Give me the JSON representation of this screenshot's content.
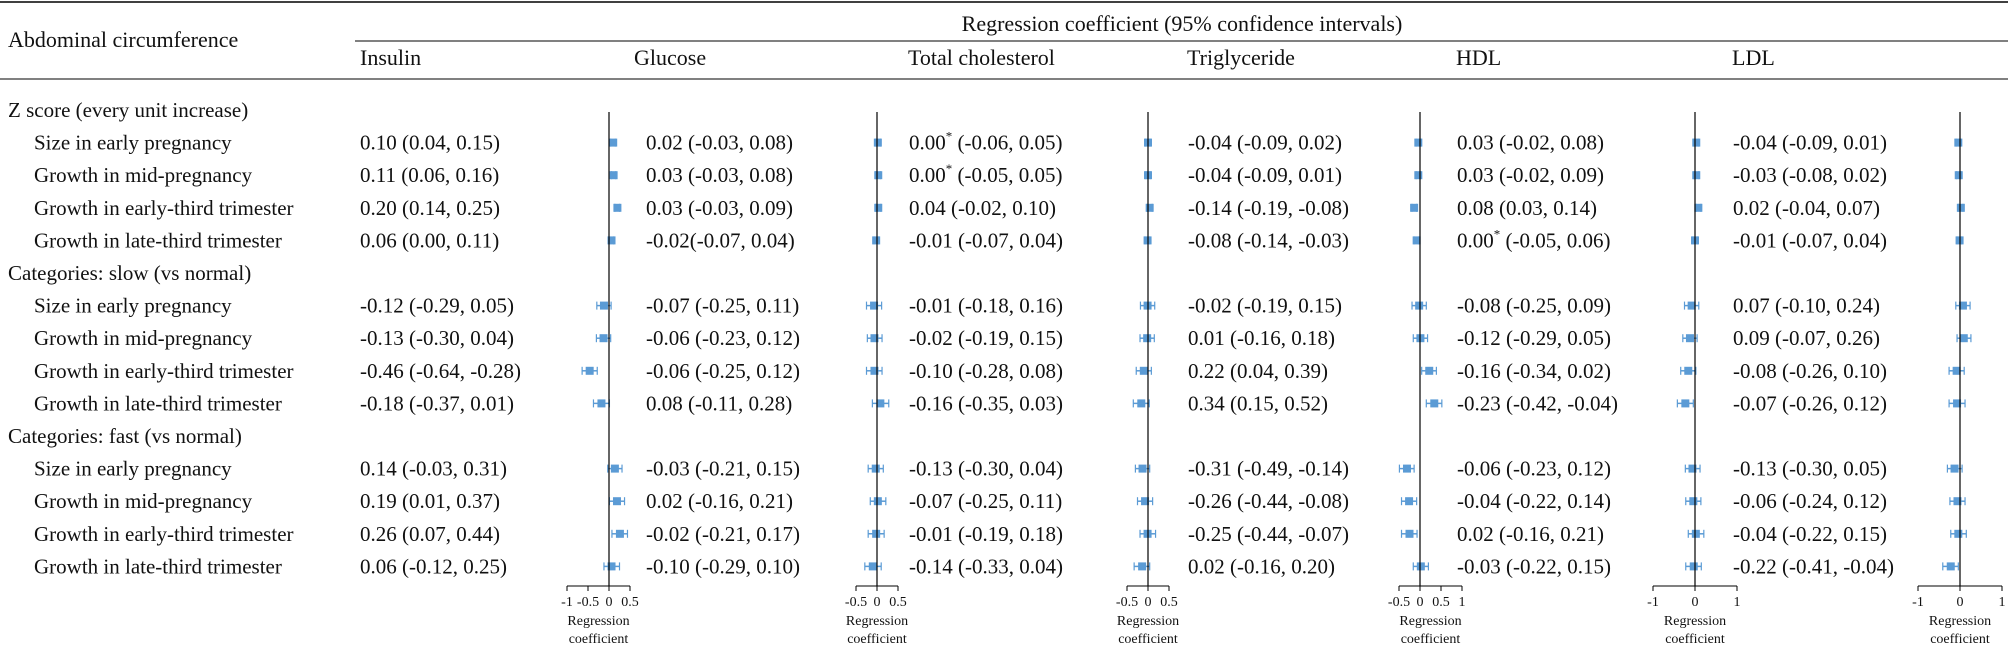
{
  "chart_data": {
    "type": "forest",
    "title": "Regression coefficient (95% confidence intervals)",
    "row_header": "Abdominal circumference",
    "columns": [
      {
        "name": "Insulin",
        "ticks": [
          "-1",
          "-0.5",
          "0",
          "0.5"
        ],
        "tick_values": [
          -1,
          -0.5,
          0,
          0.5
        ],
        "xlim": [
          -1,
          0.5
        ],
        "xlabel": "Regression coefficient"
      },
      {
        "name": "Glucose",
        "ticks": [
          "-0.5",
          "0",
          "0.5"
        ],
        "tick_values": [
          -0.5,
          0,
          0.5
        ],
        "xlim": [
          -0.5,
          0.5
        ],
        "xlabel": "Regression coefficient"
      },
      {
        "name": "Total cholesterol",
        "ticks": [
          "-0.5",
          "0",
          "0.5"
        ],
        "tick_values": [
          -0.5,
          0,
          0.5
        ],
        "xlim": [
          -0.5,
          0.5
        ],
        "xlabel": "Regression coefficient"
      },
      {
        "name": "Triglyceride",
        "ticks": [
          "-0.5",
          "0",
          "0.5",
          "1"
        ],
        "tick_values": [
          -0.5,
          0,
          0.5,
          1
        ],
        "xlim": [
          -0.5,
          1
        ],
        "xlabel": "Regression coefficient"
      },
      {
        "name": "HDL",
        "ticks": [
          "-1",
          "0",
          "1"
        ],
        "tick_values": [
          -1,
          0,
          1
        ],
        "xlim": [
          -1,
          1
        ],
        "xlabel": "Regression coefficient"
      },
      {
        "name": "LDL",
        "ticks": [
          "-1",
          "0",
          "1"
        ],
        "tick_values": [
          -1,
          0,
          1
        ],
        "xlim": [
          -1,
          1
        ],
        "xlabel": "Regression coefficient"
      }
    ],
    "groups": [
      {
        "title": "Z score (every unit increase)",
        "rows": [
          {
            "label": "Size in early pregnancy",
            "values": [
              {
                "text": "0.10 (0.04, 0.15)",
                "est": 0.1,
                "lo": 0.04,
                "hi": 0.15
              },
              {
                "text": "0.02 (-0.03, 0.08)",
                "est": 0.02,
                "lo": -0.03,
                "hi": 0.08
              },
              {
                "text": "0.00",
                "star": "*",
                "rest": " (-0.06, 0.05)",
                "est": 0.0,
                "lo": -0.06,
                "hi": 0.05
              },
              {
                "text": "-0.04 (-0.09, 0.02)",
                "est": -0.04,
                "lo": -0.09,
                "hi": 0.02
              },
              {
                "text": "0.03 (-0.02, 0.08)",
                "est": 0.03,
                "lo": -0.02,
                "hi": 0.08
              },
              {
                "text": "-0.04 (-0.09, 0.01)",
                "est": -0.04,
                "lo": -0.09,
                "hi": 0.01
              }
            ]
          },
          {
            "label": "Growth in mid-pregnancy",
            "values": [
              {
                "text": "0.11 (0.06, 0.16)",
                "est": 0.11,
                "lo": 0.06,
                "hi": 0.16
              },
              {
                "text": "0.03 (-0.03, 0.08)",
                "est": 0.03,
                "lo": -0.03,
                "hi": 0.08
              },
              {
                "text": "0.00",
                "star": "*",
                "rest": " (-0.05, 0.05)",
                "est": 0.0,
                "lo": -0.05,
                "hi": 0.05
              },
              {
                "text": "-0.04 (-0.09, 0.01)",
                "est": -0.04,
                "lo": -0.09,
                "hi": 0.01
              },
              {
                "text": "0.03 (-0.02, 0.09)",
                "est": 0.03,
                "lo": -0.02,
                "hi": 0.09
              },
              {
                "text": "-0.03 (-0.08, 0.02)",
                "est": -0.03,
                "lo": -0.08,
                "hi": 0.02
              }
            ]
          },
          {
            "label": "Growth in early-third trimester",
            "values": [
              {
                "text": "0.20 (0.14, 0.25)",
                "est": 0.2,
                "lo": 0.14,
                "hi": 0.25
              },
              {
                "text": "0.03 (-0.03, 0.09)",
                "est": 0.03,
                "lo": -0.03,
                "hi": 0.09
              },
              {
                "text": "0.04  (-0.02, 0.10)",
                "est": 0.04,
                "lo": -0.02,
                "hi": 0.1
              },
              {
                "text": "-0.14 (-0.19, -0.08)",
                "est": -0.14,
                "lo": -0.19,
                "hi": -0.08
              },
              {
                "text": "0.08  (0.03, 0.14)",
                "est": 0.08,
                "lo": 0.03,
                "hi": 0.14
              },
              {
                "text": "0.02  (-0.04, 0.07)",
                "est": 0.02,
                "lo": -0.04,
                "hi": 0.07
              }
            ]
          },
          {
            "label": "Growth in late-third trimester",
            "values": [
              {
                "text": "0.06 (0.00, 0.11)",
                "est": 0.06,
                "lo": 0.0,
                "hi": 0.11
              },
              {
                "text": "-0.02(-0.07, 0.04)",
                "est": -0.02,
                "lo": -0.07,
                "hi": 0.04
              },
              {
                "text": "-0.01 (-0.07, 0.04)",
                "est": -0.01,
                "lo": -0.07,
                "hi": 0.04
              },
              {
                "text": "-0.08 (-0.14, -0.03)",
                "est": -0.08,
                "lo": -0.14,
                "hi": -0.03
              },
              {
                "text": "0.00",
                "star": "*",
                "rest": " (-0.05, 0.06)",
                "est": 0.0,
                "lo": -0.05,
                "hi": 0.06
              },
              {
                "text": "-0.01 (-0.07, 0.04)",
                "est": -0.01,
                "lo": -0.07,
                "hi": 0.04
              }
            ]
          }
        ]
      },
      {
        "title": "Categories: slow (vs normal)",
        "rows": [
          {
            "label": "Size in early pregnancy",
            "values": [
              {
                "text": "-0.12 (-0.29, 0.05)",
                "est": -0.12,
                "lo": -0.29,
                "hi": 0.05
              },
              {
                "text": "-0.07 (-0.25, 0.11)",
                "est": -0.07,
                "lo": -0.25,
                "hi": 0.11
              },
              {
                "text": "-0.01 (-0.18, 0.16)",
                "est": -0.01,
                "lo": -0.18,
                "hi": 0.16
              },
              {
                "text": "-0.02 (-0.19, 0.15)",
                "est": -0.02,
                "lo": -0.19,
                "hi": 0.15
              },
              {
                "text": "-0.08 (-0.25, 0.09)",
                "est": -0.08,
                "lo": -0.25,
                "hi": 0.09
              },
              {
                "text": "0.07  (-0.10, 0.24)",
                "est": 0.07,
                "lo": -0.1,
                "hi": 0.24
              }
            ]
          },
          {
            "label": "Growth in mid-pregnancy",
            "values": [
              {
                "text": "-0.13 (-0.30, 0.04)",
                "est": -0.13,
                "lo": -0.3,
                "hi": 0.04
              },
              {
                "text": "-0.06 (-0.23, 0.12)",
                "est": -0.06,
                "lo": -0.23,
                "hi": 0.12
              },
              {
                "text": "-0.02 (-0.19, 0.15)",
                "est": -0.02,
                "lo": -0.19,
                "hi": 0.15
              },
              {
                "text": "0.01  (-0.16, 0.18)",
                "est": 0.01,
                "lo": -0.16,
                "hi": 0.18
              },
              {
                "text": "-0.12 (-0.29, 0.05)",
                "est": -0.12,
                "lo": -0.29,
                "hi": 0.05
              },
              {
                "text": "0.09  (-0.07, 0.26)",
                "est": 0.09,
                "lo": -0.07,
                "hi": 0.26
              }
            ]
          },
          {
            "label": "Growth in early-third trimester",
            "values": [
              {
                "text": "-0.46 (-0.64, -0.28)",
                "est": -0.46,
                "lo": -0.64,
                "hi": -0.28
              },
              {
                "text": "-0.06 (-0.25, 0.12)",
                "est": -0.06,
                "lo": -0.25,
                "hi": 0.12
              },
              {
                "text": "-0.10 (-0.28, 0.08)",
                "est": -0.1,
                "lo": -0.28,
                "hi": 0.08
              },
              {
                "text": "0.22  (0.04, 0.39)",
                "est": 0.22,
                "lo": 0.04,
                "hi": 0.39
              },
              {
                "text": "-0.16 (-0.34, 0.02)",
                "est": -0.16,
                "lo": -0.34,
                "hi": 0.02
              },
              {
                "text": "-0.08 (-0.26, 0.10)",
                "est": -0.08,
                "lo": -0.26,
                "hi": 0.1
              }
            ]
          },
          {
            "label": "Growth in late-third trimester",
            "values": [
              {
                "text": "-0.18 (-0.37, 0.01)",
                "est": -0.18,
                "lo": -0.37,
                "hi": 0.01
              },
              {
                "text": "0.08  (-0.11, 0.28)",
                "est": 0.08,
                "lo": -0.11,
                "hi": 0.28
              },
              {
                "text": "-0.16 (-0.35, 0.03)",
                "est": -0.16,
                "lo": -0.35,
                "hi": 0.03
              },
              {
                "text": "0.34  (0.15, 0.52)",
                "est": 0.34,
                "lo": 0.15,
                "hi": 0.52
              },
              {
                "text": "-0.23 (-0.42, -0.04)",
                "est": -0.23,
                "lo": -0.42,
                "hi": -0.04
              },
              {
                "text": "-0.07 (-0.26, 0.12)",
                "est": -0.07,
                "lo": -0.26,
                "hi": 0.12
              }
            ]
          }
        ]
      },
      {
        "title": "Categories: fast (vs normal)",
        "rows": [
          {
            "label": "Size in early pregnancy",
            "values": [
              {
                "text": "0.14 (-0.03, 0.31)",
                "est": 0.14,
                "lo": -0.03,
                "hi": 0.31
              },
              {
                "text": "-0.03 (-0.21, 0.15)",
                "est": -0.03,
                "lo": -0.21,
                "hi": 0.15
              },
              {
                "text": "-0.13 (-0.30, 0.04)",
                "est": -0.13,
                "lo": -0.3,
                "hi": 0.04
              },
              {
                "text": "-0.31 (-0.49, -0.14)",
                "est": -0.31,
                "lo": -0.49,
                "hi": -0.14
              },
              {
                "text": "-0.06 (-0.23, 0.12)",
                "est": -0.06,
                "lo": -0.23,
                "hi": 0.12
              },
              {
                "text": "-0.13 (-0.30, 0.05)",
                "est": -0.13,
                "lo": -0.3,
                "hi": 0.05
              }
            ]
          },
          {
            "label": "Growth in mid-pregnancy",
            "values": [
              {
                "text": "0.19 (0.01, 0.37)",
                "est": 0.19,
                "lo": 0.01,
                "hi": 0.37
              },
              {
                "text": "0.02  (-0.16, 0.21)",
                "est": 0.02,
                "lo": -0.16,
                "hi": 0.21
              },
              {
                "text": "-0.07 (-0.25, 0.11)",
                "est": -0.07,
                "lo": -0.25,
                "hi": 0.11
              },
              {
                "text": "-0.26 (-0.44, -0.08)",
                "est": -0.26,
                "lo": -0.44,
                "hi": -0.08
              },
              {
                "text": "-0.04 (-0.22, 0.14)",
                "est": -0.04,
                "lo": -0.22,
                "hi": 0.14
              },
              {
                "text": "-0.06 (-0.24, 0.12)",
                "est": -0.06,
                "lo": -0.24,
                "hi": 0.12
              }
            ]
          },
          {
            "label": "Growth in early-third trimester",
            "values": [
              {
                "text": "0.26 (0.07, 0.44)",
                "est": 0.26,
                "lo": 0.07,
                "hi": 0.44
              },
              {
                "text": "-0.02 (-0.21, 0.17)",
                "est": -0.02,
                "lo": -0.21,
                "hi": 0.17
              },
              {
                "text": "-0.01 (-0.19, 0.18)",
                "est": -0.01,
                "lo": -0.19,
                "hi": 0.18
              },
              {
                "text": "-0.25 (-0.44, -0.07)",
                "est": -0.25,
                "lo": -0.44,
                "hi": -0.07
              },
              {
                "text": "0.02  (-0.16, 0.21)",
                "est": 0.02,
                "lo": -0.16,
                "hi": 0.21
              },
              {
                "text": "-0.04 (-0.22, 0.15)",
                "est": -0.04,
                "lo": -0.22,
                "hi": 0.15
              }
            ]
          },
          {
            "label": "Growth in late-third trimester",
            "values": [
              {
                "text": "0.06 (-0.12, 0.25)",
                "est": 0.06,
                "lo": -0.12,
                "hi": 0.25
              },
              {
                "text": "-0.10 (-0.29, 0.10)",
                "est": -0.1,
                "lo": -0.29,
                "hi": 0.1
              },
              {
                "text": "-0.14 (-0.33, 0.04)",
                "est": -0.14,
                "lo": -0.33,
                "hi": 0.04
              },
              {
                "text": "0.02  (-0.16, 0.20)",
                "est": 0.02,
                "lo": -0.16,
                "hi": 0.2
              },
              {
                "text": "-0.03 (-0.22, 0.15)",
                "est": -0.03,
                "lo": -0.22,
                "hi": 0.15
              },
              {
                "text": "-0.22 (-0.41, -0.04)",
                "est": -0.22,
                "lo": -0.41,
                "hi": -0.04
              }
            ]
          }
        ]
      }
    ]
  },
  "colors": {
    "marker": "#5b9bd5",
    "line": "#000000",
    "text": "#111111"
  }
}
